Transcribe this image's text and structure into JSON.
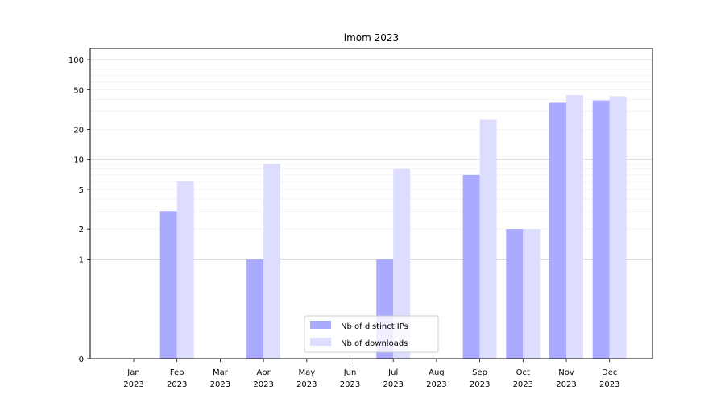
{
  "chart_data": {
    "type": "bar",
    "title": "lmom 2023",
    "xlabel": "",
    "ylabel": "",
    "yscale": "symlog",
    "ylim": [
      0,
      130
    ],
    "yticks": [
      0,
      1,
      2,
      5,
      10,
      20,
      50,
      100
    ],
    "ytick_labels": [
      "0",
      "1",
      "2",
      "5",
      "10",
      "20",
      "50",
      "100"
    ],
    "categories": [
      "Jan\n2023",
      "Feb\n2023",
      "Mar\n2023",
      "Apr\n2023",
      "May\n2023",
      "Jun\n2023",
      "Jul\n2023",
      "Aug\n2023",
      "Sep\n2023",
      "Oct\n2023",
      "Nov\n2023",
      "Dec\n2023"
    ],
    "series": [
      {
        "name": "Nb of distinct IPs",
        "color": "#aaaaff",
        "values": [
          0,
          3,
          0,
          1,
          0,
          0,
          1,
          0,
          7,
          2,
          37,
          39
        ]
      },
      {
        "name": "Nb of downloads",
        "color": "#ddddff",
        "values": [
          0,
          6,
          0,
          9,
          0,
          0,
          8,
          0,
          25,
          2,
          44,
          43
        ]
      }
    ],
    "grid": true,
    "legend": "bottom-center"
  }
}
